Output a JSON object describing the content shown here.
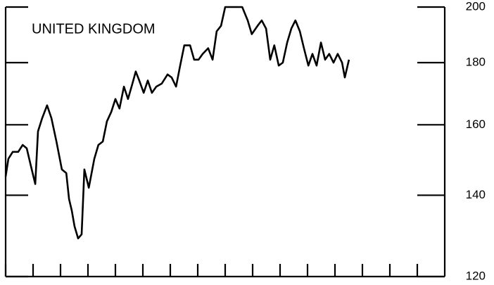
{
  "chart_data": {
    "type": "line",
    "title": "UNITED KINGDOM",
    "log_scale": true,
    "ylim": [
      120,
      200
    ],
    "yticks": [
      120,
      140,
      160,
      180,
      200
    ],
    "xlim": [
      0,
      15
    ],
    "xticks": [
      0,
      1,
      2,
      3,
      4,
      5,
      6,
      7,
      8,
      9,
      10,
      11,
      12,
      13,
      14,
      15
    ],
    "x": [
      0,
      0.1,
      0.26,
      0.46,
      0.62,
      0.77,
      0.92,
      1.08,
      1.18,
      1.33,
      1.51,
      1.67,
      1.85,
      2.05,
      2.21,
      2.31,
      2.41,
      2.51,
      2.64,
      2.77,
      2.87,
      3.03,
      3.23,
      3.38,
      3.54,
      3.69,
      3.85,
      4,
      4.15,
      4.31,
      4.46,
      4.62,
      4.74,
      4.87,
      5.03,
      5.18,
      5.33,
      5.49,
      5.69,
      5.9,
      6.05,
      6.21,
      6.36,
      6.51,
      6.72,
      6.87,
      7.03,
      7.18,
      7.38,
      7.54,
      7.69,
      7.85,
      8,
      8.26,
      8.62,
      8.82,
      8.97,
      9.18,
      9.33,
      9.49,
      9.64,
      9.79,
      9.95,
      10.1,
      10.26,
      10.41,
      10.56,
      10.72,
      10.87,
      11.03,
      11.18,
      11.33,
      11.49,
      11.64,
      11.79,
      11.95,
      12.1,
      12.26,
      12.36,
      12.51
    ],
    "values": [
      145,
      150,
      152,
      152,
      154,
      153,
      148,
      143,
      158,
      162,
      166,
      162,
      155,
      147,
      146,
      139,
      136,
      132,
      129,
      130,
      147,
      142,
      150,
      154,
      155,
      161,
      164,
      168,
      165,
      172,
      168,
      173,
      177,
      174,
      170,
      174,
      170,
      172,
      173,
      176,
      175,
      172,
      179,
      186,
      186,
      181,
      181,
      183,
      185,
      181,
      191,
      193,
      200,
      200,
      200,
      195,
      190,
      193,
      195,
      192,
      181,
      186,
      179,
      180,
      187,
      192,
      195,
      191,
      185,
      179,
      183,
      179,
      187,
      181,
      183,
      180,
      183,
      180,
      175,
      181
    ],
    "color": "#000000"
  }
}
